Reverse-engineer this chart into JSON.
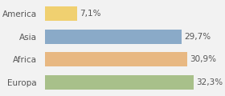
{
  "categories": [
    "America",
    "Asia",
    "Africa",
    "Europa"
  ],
  "values": [
    7.1,
    29.7,
    30.9,
    32.3
  ],
  "labels": [
    "7,1%",
    "29,7%",
    "30,9%",
    "32,3%"
  ],
  "bar_colors": [
    "#f0d070",
    "#8aaac8",
    "#e8b882",
    "#a8c08a"
  ],
  "background_color": "#f2f2f2",
  "xlim": [
    0,
    38
  ],
  "bar_height": 0.62,
  "label_fontsize": 7.5,
  "tick_fontsize": 7.5
}
